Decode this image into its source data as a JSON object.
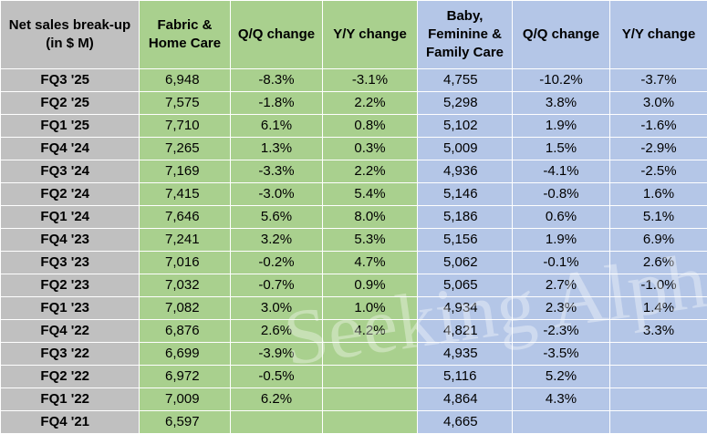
{
  "table": {
    "headers": {
      "label": [
        "Net sales break-up",
        "(in $ M)"
      ],
      "fhc": [
        "Fabric &",
        "Home Care"
      ],
      "fhc_qq": "Q/Q change",
      "fhc_yy": "Y/Y change",
      "bfc": [
        "Baby,",
        "Feminine &",
        "Family Care"
      ],
      "bfc_qq": "Q/Q change",
      "bfc_yy": "Y/Y change"
    },
    "rows": [
      {
        "q": "FQ3 '25",
        "fhc": "6,948",
        "fhc_qq": "-8.3%",
        "fhc_yy": "-3.1%",
        "bfc": "4,755",
        "bfc_qq": "-10.2%",
        "bfc_yy": "-3.7%"
      },
      {
        "q": "FQ2 '25",
        "fhc": "7,575",
        "fhc_qq": "-1.8%",
        "fhc_yy": "2.2%",
        "bfc": "5,298",
        "bfc_qq": "3.8%",
        "bfc_yy": "3.0%"
      },
      {
        "q": "FQ1 '25",
        "fhc": "7,710",
        "fhc_qq": "6.1%",
        "fhc_yy": "0.8%",
        "bfc": "5,102",
        "bfc_qq": "1.9%",
        "bfc_yy": "-1.6%"
      },
      {
        "q": "FQ4 '24",
        "fhc": "7,265",
        "fhc_qq": "1.3%",
        "fhc_yy": "0.3%",
        "bfc": "5,009",
        "bfc_qq": "1.5%",
        "bfc_yy": "-2.9%"
      },
      {
        "q": "FQ3 '24",
        "fhc": "7,169",
        "fhc_qq": "-3.3%",
        "fhc_yy": "2.2%",
        "bfc": "4,936",
        "bfc_qq": "-4.1%",
        "bfc_yy": "-2.5%"
      },
      {
        "q": "FQ2 '24",
        "fhc": "7,415",
        "fhc_qq": "-3.0%",
        "fhc_yy": "5.4%",
        "bfc": "5,146",
        "bfc_qq": "-0.8%",
        "bfc_yy": "1.6%"
      },
      {
        "q": "FQ1 '24",
        "fhc": "7,646",
        "fhc_qq": "5.6%",
        "fhc_yy": "8.0%",
        "bfc": "5,186",
        "bfc_qq": "0.6%",
        "bfc_yy": "5.1%"
      },
      {
        "q": "FQ4 '23",
        "fhc": "7,241",
        "fhc_qq": "3.2%",
        "fhc_yy": "5.3%",
        "bfc": "5,156",
        "bfc_qq": "1.9%",
        "bfc_yy": "6.9%"
      },
      {
        "q": "FQ3 '23",
        "fhc": "7,016",
        "fhc_qq": "-0.2%",
        "fhc_yy": "4.7%",
        "bfc": "5,062",
        "bfc_qq": "-0.1%",
        "bfc_yy": "2.6%"
      },
      {
        "q": "FQ2 '23",
        "fhc": "7,032",
        "fhc_qq": "-0.7%",
        "fhc_yy": "0.9%",
        "bfc": "5,065",
        "bfc_qq": "2.7%",
        "bfc_yy": "-1.0%"
      },
      {
        "q": "FQ1 '23",
        "fhc": "7,082",
        "fhc_qq": "3.0%",
        "fhc_yy": "1.0%",
        "bfc": "4,934",
        "bfc_qq": "2.3%",
        "bfc_yy": "1.4%"
      },
      {
        "q": "FQ4 '22",
        "fhc": "6,876",
        "fhc_qq": "2.6%",
        "fhc_yy": "4.2%",
        "bfc": "4,821",
        "bfc_qq": "-2.3%",
        "bfc_yy": "3.3%"
      },
      {
        "q": "FQ3 '22",
        "fhc": "6,699",
        "fhc_qq": "-3.9%",
        "fhc_yy": "",
        "bfc": "4,935",
        "bfc_qq": "-3.5%",
        "bfc_yy": ""
      },
      {
        "q": "FQ2 '22",
        "fhc": "6,972",
        "fhc_qq": "-0.5%",
        "fhc_yy": "",
        "bfc": "5,116",
        "bfc_qq": "5.2%",
        "bfc_yy": ""
      },
      {
        "q": "FQ1 '22",
        "fhc": "7,009",
        "fhc_qq": "6.2%",
        "fhc_yy": "",
        "bfc": "4,864",
        "bfc_qq": "4.3%",
        "bfc_yy": ""
      },
      {
        "q": "FQ4 '21",
        "fhc": "6,597",
        "fhc_qq": "",
        "fhc_yy": "",
        "bfc": "4,665",
        "bfc_qq": "",
        "bfc_yy": ""
      }
    ]
  },
  "watermark": "Seeking Alpha",
  "colors": {
    "label_bg": "#c0c0c0",
    "fabric_bg": "#a9d08e",
    "baby_bg": "#b4c6e7"
  }
}
